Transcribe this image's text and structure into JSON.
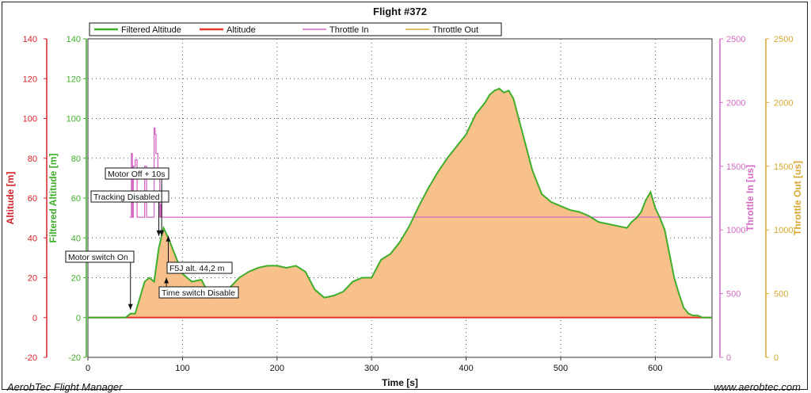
{
  "footer": {
    "left": "AerobTec Flight Manager",
    "right": "www.aerobtec.com"
  },
  "colors": {
    "filtered": "#3fae2a",
    "altitude": "#e4372b",
    "throttle_in": "#d569c5",
    "throttle_out": "#d6a830",
    "fill": "#f8c08a",
    "grid": "#555555"
  },
  "chart_data": {
    "type": "line",
    "title": "Flight #372",
    "xlabel": "Time [s]",
    "xlim": [
      0,
      660
    ],
    "xticks": [
      0,
      100,
      200,
      300,
      400,
      500,
      600
    ],
    "grid": true,
    "legend_position": "top",
    "legend": [
      "Filtered Altitude",
      "Altitude",
      "Throttle In",
      "Throttle Out"
    ],
    "axes": {
      "altitude": {
        "label": "Altitude [m]",
        "range": [
          -20,
          140
        ],
        "ticks": [
          -20,
          0,
          20,
          40,
          60,
          80,
          100,
          120,
          140
        ],
        "side": "left",
        "color": "#d2232a"
      },
      "filtered": {
        "label": "Filtered Altitude [m]",
        "range": [
          -20,
          140
        ],
        "ticks": [
          -20,
          0,
          20,
          40,
          60,
          80,
          100,
          120,
          140
        ],
        "side": "left",
        "color": "#3fae2a"
      },
      "throttle_in": {
        "label": "Throttle In [us]",
        "range": [
          0,
          2500
        ],
        "ticks": [
          0,
          500,
          1000,
          1500,
          2000,
          2500
        ],
        "side": "right",
        "color": "#d569c5"
      },
      "throttle_out": {
        "label": "Throttle Out [us]",
        "range": [
          0,
          2500
        ],
        "ticks": [
          0,
          500,
          1000,
          1500,
          2000,
          2500
        ],
        "side": "right",
        "color": "#d6a830"
      }
    },
    "series": [
      {
        "name": "Filtered Altitude",
        "axis": "filtered",
        "x": [
          0,
          20,
          40,
          45,
          50,
          55,
          60,
          65,
          70,
          75,
          80,
          85,
          90,
          95,
          100,
          110,
          120,
          130,
          140,
          150,
          160,
          170,
          180,
          190,
          200,
          210,
          220,
          230,
          240,
          250,
          260,
          270,
          280,
          290,
          300,
          310,
          320,
          330,
          340,
          350,
          360,
          370,
          380,
          390,
          400,
          410,
          420,
          425,
          430,
          435,
          440,
          445,
          450,
          460,
          470,
          480,
          490,
          500,
          510,
          520,
          530,
          540,
          550,
          560,
          570,
          575,
          580,
          585,
          590,
          595,
          600,
          605,
          610,
          620,
          625,
          630,
          635,
          640,
          645,
          650,
          655,
          660
        ],
        "y": [
          0,
          0,
          0,
          2,
          2,
          10,
          18,
          20,
          18,
          35,
          45,
          40,
          34,
          28,
          22,
          18,
          19,
          10,
          12,
          15,
          20,
          23,
          25,
          26,
          26,
          25,
          26,
          23,
          14,
          10,
          11,
          13,
          18,
          20,
          20,
          29,
          32,
          38,
          46,
          56,
          65,
          73,
          80,
          86,
          92,
          102,
          108,
          112,
          114,
          115,
          113,
          114,
          110,
          92,
          74,
          62,
          58,
          56,
          54,
          53,
          51,
          48,
          47,
          46,
          45,
          48,
          50,
          53,
          59,
          63,
          55,
          50,
          44,
          20,
          12,
          5,
          2,
          1,
          1,
          0,
          0,
          0
        ]
      },
      {
        "name": "Altitude",
        "axis": "altitude",
        "x": [
          0,
          660
        ],
        "y": [
          0,
          0
        ]
      },
      {
        "name": "Throttle In",
        "axis": "throttle_in",
        "x": [
          0,
          44,
          44,
          45,
          46,
          46,
          47,
          47,
          48,
          48,
          50,
          50,
          52,
          52,
          54,
          54,
          60,
          60,
          62,
          62,
          70,
          70,
          71,
          71,
          72,
          72,
          74,
          74,
          76,
          76,
          77,
          77,
          78,
          78,
          660
        ],
        "y": [
          null,
          null,
          1100,
          1100,
          1100,
          1600,
          1600,
          1100,
          1100,
          1500,
          1500,
          1550,
          1550,
          1100,
          1100,
          1100,
          1100,
          1500,
          1500,
          1100,
          1100,
          1800,
          1800,
          1750,
          1750,
          1600,
          1600,
          1400,
          1400,
          1100,
          1100,
          1200,
          1200,
          1100,
          1100
        ]
      },
      {
        "name": "Throttle Out",
        "axis": "throttle_out",
        "x": [
          0,
          660
        ],
        "y": [
          0,
          0
        ]
      }
    ],
    "annotations": [
      {
        "label": "Motor switch On",
        "x": 45,
        "y": 4
      },
      {
        "label": "Tracking Disabled",
        "x": 75,
        "y": 41
      },
      {
        "label": "Motor Off + 10s",
        "x": 78,
        "y": 41
      },
      {
        "label": "F5J alt. 44,2 m",
        "x": 85,
        "y": 41
      },
      {
        "label": "Time switch Disable",
        "x": 83,
        "y": 20
      }
    ]
  }
}
